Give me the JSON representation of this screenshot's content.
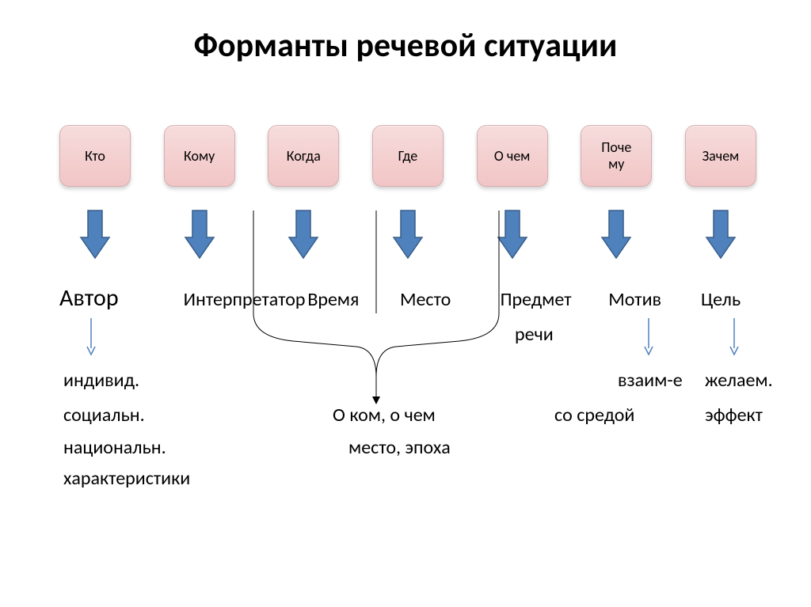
{
  "title": "Форманты речевой ситуации",
  "boxes": [
    {
      "label": "Кто"
    },
    {
      "label": "Кому"
    },
    {
      "label": "Когда"
    },
    {
      "label": "Где"
    },
    {
      "label": "О чем"
    },
    {
      "label": "Поче\nму"
    },
    {
      "label": "Зачем"
    }
  ],
  "arrow": {
    "fill": "#4f81bd",
    "stroke": "#385d8a",
    "width": 28,
    "height": 60,
    "head_width": 40
  },
  "thin_arrow": {
    "stroke": "#4f81bd",
    "width": 1.5
  },
  "row2": {
    "author": "Автор",
    "interpreter": "Интерпретатор",
    "time": "Время",
    "place": "Место",
    "subject": "Предмет",
    "motive": "Мотив",
    "goal": "Цель"
  },
  "row3a": "речи",
  "row4": {
    "indiv": "индивид.",
    "vzaim": "взаим-е",
    "zhelaem": "желаем."
  },
  "row5": {
    "social": "социальн.",
    "okom": "О ком, о чем",
    "sreda": "со средой",
    "effect": "эффект"
  },
  "row6": "национальн.",
  "row6b": "место, эпоха",
  "row7": "характеристики",
  "colors": {
    "box_top": "#f6dcdc",
    "box_bot": "#f2c5c5",
    "box_border": "#d7aeb0",
    "bg": "#ffffff",
    "text": "#000000"
  }
}
